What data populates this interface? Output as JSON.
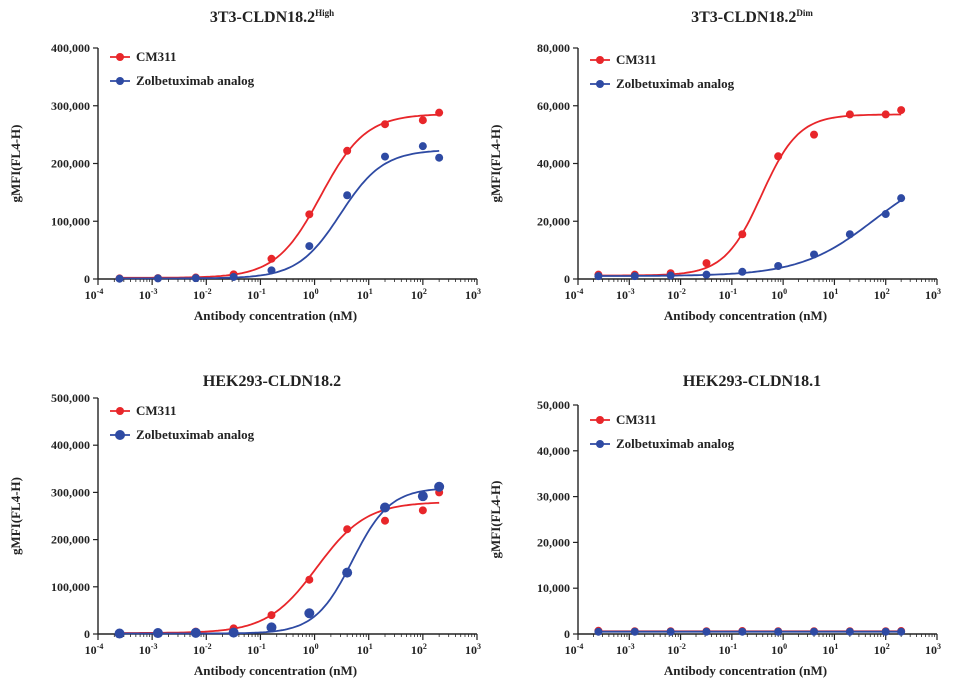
{
  "colors": {
    "CM311": "#e8262a",
    "Zolbetuximab analog": "#2e4aa3",
    "axis": "#222222"
  },
  "chart_data": [
    {
      "type": "scatter",
      "title": "3T3-CLDN18.2",
      "title_sup": "High",
      "xlabel": "Antibody concentration (nM)",
      "ylabel": "gMFI(FL4-H)",
      "x_scale": "log",
      "xlim": [
        0.0001,
        1000
      ],
      "x_ticks": [
        "10-4",
        "10-3",
        "10-2",
        "10-1",
        "100",
        "101",
        "102",
        "103"
      ],
      "ylim": [
        0,
        400000
      ],
      "y_ticks": [
        "0",
        "100,000",
        "200,000",
        "300,000",
        "400,000"
      ],
      "x": [
        0.00025,
        0.00128,
        0.0064,
        0.032,
        0.16,
        0.8,
        4,
        20,
        100,
        200
      ],
      "series": [
        {
          "name": "CM311",
          "values": [
            1000,
            1500,
            2500,
            8000,
            35000,
            112000,
            222000,
            268000,
            275000,
            288000
          ],
          "fit": {
            "bottom": 2000,
            "top": 286000,
            "ec50": 1.3,
            "hill": 1.05
          }
        },
        {
          "name": "Zolbetuximab analog",
          "values": [
            500,
            1000,
            1500,
            3500,
            15000,
            57000,
            145000,
            212000,
            230000,
            210000
          ],
          "fit": {
            "bottom": 1000,
            "top": 224000,
            "ec50": 3.0,
            "hill": 1.1
          }
        }
      ],
      "legend": "top-left"
    },
    {
      "type": "scatter",
      "title": "3T3-CLDN18.2",
      "title_sup": "Dim",
      "xlabel": "Antibody concentration (nM)",
      "ylabel": "gMFI(FL4-H)",
      "x_scale": "log",
      "xlim": [
        0.0001,
        1000
      ],
      "x_ticks": [
        "10-4",
        "10-3",
        "10-2",
        "10-1",
        "100",
        "101",
        "102",
        "103"
      ],
      "ylim": [
        0,
        80000
      ],
      "y_ticks": [
        "0",
        "20,000",
        "40,000",
        "60,000",
        "80,000"
      ],
      "x": [
        0.00025,
        0.00128,
        0.0064,
        0.032,
        0.16,
        0.8,
        4,
        20,
        100,
        200
      ],
      "series": [
        {
          "name": "CM311",
          "values": [
            1500,
            1500,
            2000,
            5500,
            15500,
            42500,
            50000,
            57000,
            57000,
            58500
          ],
          "fit": {
            "bottom": 1200,
            "top": 57000,
            "ec50": 0.38,
            "hill": 1.2
          }
        },
        {
          "name": "Zolbetuximab analog",
          "values": [
            1000,
            1000,
            1200,
            1500,
            2500,
            4500,
            8500,
            15500,
            22500,
            28000
          ],
          "fit": {
            "bottom": 1000,
            "top": 40000,
            "ec50": 60,
            "hill": 0.6
          }
        }
      ],
      "legend": "top-left"
    },
    {
      "type": "scatter",
      "title": "HEK293-CLDN18.2",
      "title_sup": "",
      "xlabel": "Antibody concentration (nM)",
      "ylabel": "gMFI(FL4-H)",
      "x_scale": "log",
      "xlim": [
        0.0001,
        1000
      ],
      "x_ticks": [
        "10-4",
        "10-3",
        "10-2",
        "10-1",
        "100",
        "101",
        "102",
        "103"
      ],
      "ylim": [
        0,
        500000
      ],
      "y_ticks": [
        "0",
        "100,000",
        "200,000",
        "300,000",
        "400,000",
        "500,000"
      ],
      "x": [
        0.00025,
        0.00128,
        0.0064,
        0.032,
        0.16,
        0.8,
        4,
        20,
        100,
        200
      ],
      "series": [
        {
          "name": "CM311",
          "values": [
            2000,
            3000,
            5000,
            12000,
            40000,
            115000,
            222000,
            240000,
            262000,
            300000
          ],
          "fit": {
            "bottom": 2000,
            "top": 280000,
            "ec50": 1.1,
            "hill": 0.95
          }
        },
        {
          "name": "Zolbetuximab analog",
          "values": [
            1000,
            2000,
            2500,
            3000,
            14000,
            44000,
            130000,
            268000,
            292000,
            312000
          ],
          "fit": {
            "bottom": 1000,
            "top": 310000,
            "ec50": 5.0,
            "hill": 1.25
          }
        }
      ],
      "legend": "top-left"
    },
    {
      "type": "scatter",
      "title": "HEK293-CLDN18.1",
      "title_sup": "",
      "xlabel": "Antibody concentration (nM)",
      "ylabel": "gMFI(FL4-H)",
      "x_scale": "log",
      "xlim": [
        0.0001,
        1000
      ],
      "x_ticks": [
        "10-4",
        "10-3",
        "10-2",
        "10-1",
        "100",
        "101",
        "102",
        "103"
      ],
      "ylim": [
        0,
        50000
      ],
      "y_ticks": [
        "0",
        "10,000",
        "20,000",
        "30,000",
        "40,000",
        "50,000"
      ],
      "x": [
        0.00025,
        0.00128,
        0.0064,
        0.032,
        0.16,
        0.8,
        4,
        20,
        100,
        200
      ],
      "series": [
        {
          "name": "CM311",
          "values": [
            700,
            600,
            600,
            600,
            650,
            600,
            600,
            600,
            600,
            650
          ],
          "fit": {
            "bottom": 600,
            "top": 600,
            "ec50": 1,
            "hill": 1
          }
        },
        {
          "name": "Zolbetuximab analog",
          "values": [
            500,
            500,
            500,
            500,
            500,
            500,
            500,
            500,
            500,
            500
          ],
          "fit": {
            "bottom": 500,
            "top": 500,
            "ec50": 1,
            "hill": 1
          }
        }
      ],
      "legend": "top-left"
    }
  ]
}
